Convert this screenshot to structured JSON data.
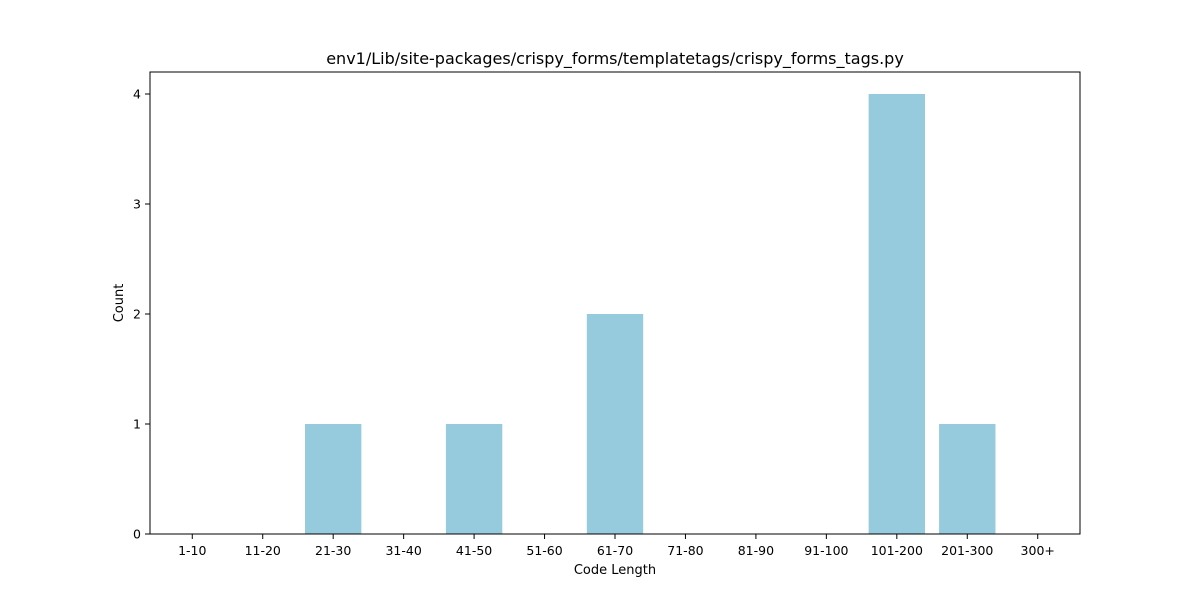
{
  "chart_data": {
    "type": "bar",
    "title": "env1/Lib/site-packages/crispy_forms/templatetags/crispy_forms_tags.py",
    "xlabel": "Code Length",
    "ylabel": "Count",
    "categories": [
      "1-10",
      "11-20",
      "21-30",
      "31-40",
      "41-50",
      "51-60",
      "61-70",
      "71-80",
      "81-90",
      "91-100",
      "101-200",
      "201-300",
      "300+"
    ],
    "values": [
      0,
      0,
      1,
      0,
      1,
      0,
      2,
      0,
      0,
      0,
      4,
      1,
      0
    ],
    "ylim": [
      0,
      4.2
    ],
    "yticks": [
      0,
      1,
      2,
      3,
      4
    ],
    "grid": false,
    "bar_color": "#96cadd"
  }
}
